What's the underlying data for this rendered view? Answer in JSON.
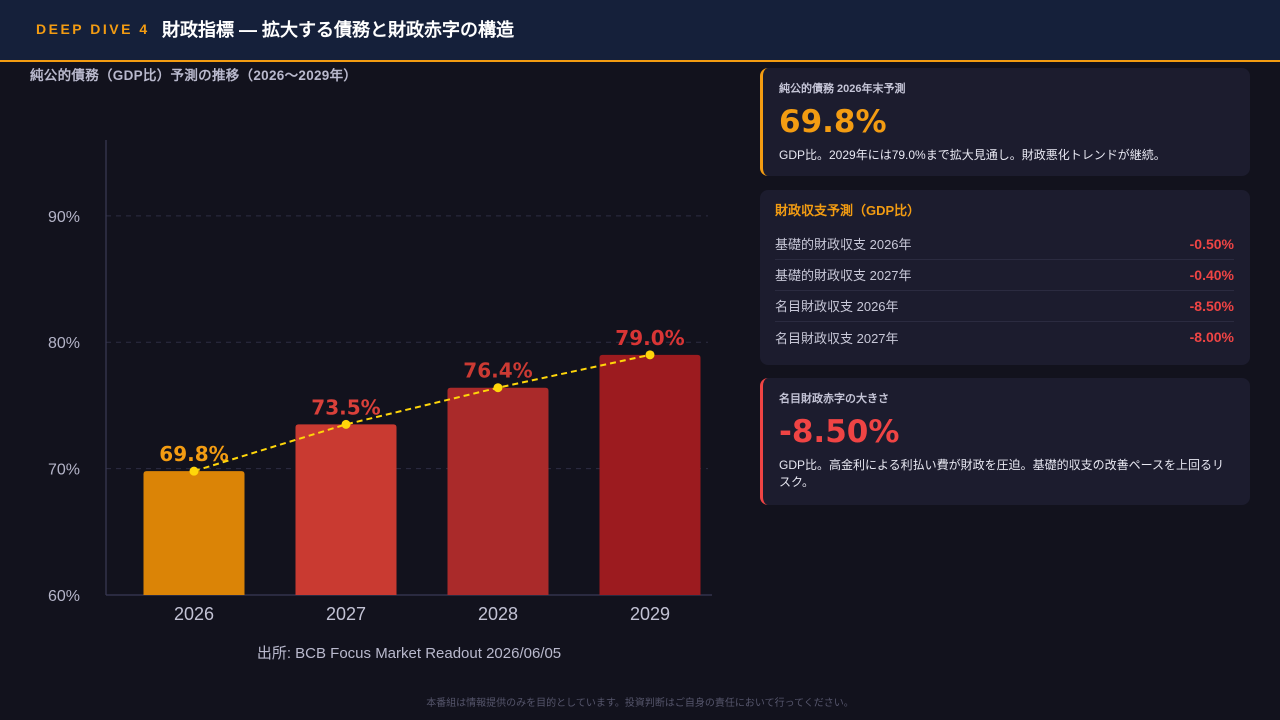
{
  "theme": {
    "orange": "#f39c12",
    "red": "#ef4444",
    "header_bg": "#15203a",
    "page_bg": "#12121d",
    "card_bg": "#1c1c2e"
  },
  "header": {
    "tag": "DEEP DIVE 4",
    "title": "財政指標 — 拡大する債務と財政赤字の構造"
  },
  "chart_data": {
    "type": "bar",
    "title": "純公的債務（GDP比）予測の推移（2026〜2029年）",
    "categories": [
      "2026",
      "2027",
      "2028",
      "2029"
    ],
    "series": [
      {
        "type": "bar",
        "values": [
          69.8,
          73.5,
          76.4,
          79.0
        ],
        "colors": [
          "#db8406",
          "#c93a31",
          "#aa2a2a",
          "#9c1b1f"
        ]
      },
      {
        "type": "line",
        "style": "dashed",
        "markers": true,
        "values": [
          69.8,
          73.5,
          76.4,
          79.0
        ],
        "color": "#ffd60a"
      }
    ],
    "data_labels": [
      "69.8%",
      "73.5%",
      "76.4%",
      "79.0%"
    ],
    "data_label_colors": [
      "#f39c12",
      "#d9403a",
      "#cc3a33",
      "#d93535"
    ],
    "yticks": [
      60,
      70,
      80,
      90
    ],
    "ytick_labels": [
      "60%",
      "70%",
      "80%",
      "90%"
    ],
    "ylim": [
      60,
      96
    ],
    "grid": true,
    "legend": "none",
    "source": "出所: BCB Focus Market Readout 2026/06/05"
  },
  "cards": {
    "debt": {
      "label": "純公的債務 2026年末予測",
      "value": "69.8%",
      "note": "GDP比。2029年には79.0%まで拡大見通し。財政悪化トレンドが継続。"
    },
    "balance": {
      "title": "財政収支予測（GDP比）",
      "rows": [
        {
          "label": "基礎的財政収支 2026年",
          "value": "-0.50%"
        },
        {
          "label": "基礎的財政収支 2027年",
          "value": "-0.40%"
        },
        {
          "label": "名目財政収支 2026年",
          "value": "-8.50%"
        },
        {
          "label": "名目財政収支 2027年",
          "value": "-8.00%"
        }
      ]
    },
    "deficit": {
      "label": "名目財政赤字の大きさ",
      "value": "-8.50%",
      "note": "GDP比。高金利による利払い費が財政を圧迫。基礎的収支の改善ペースを上回るリスク。"
    }
  },
  "footer": {
    "disclaimer": "本番組は情報提供のみを目的としています。投資判断はご自身の責任において行ってください。"
  }
}
